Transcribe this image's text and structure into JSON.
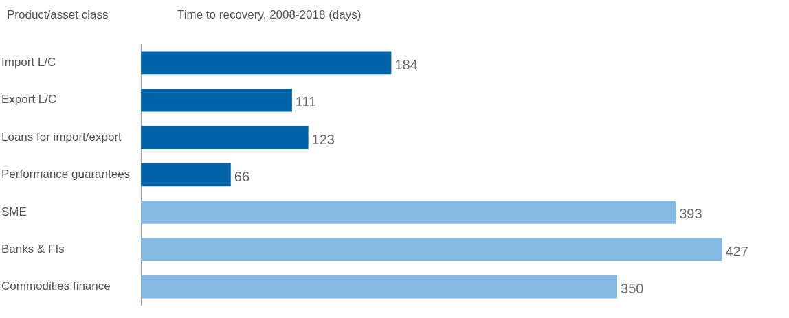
{
  "chart_data": {
    "type": "bar",
    "orientation": "horizontal",
    "ylabel": "Product/asset class",
    "xlabel": "Time to recovery, 2008-2018 (days)",
    "categories": [
      "Import L/C",
      "Export L/C",
      "Loans for import/export",
      "Performance guarantees",
      "SME",
      "Banks & FIs",
      "Commodities finance"
    ],
    "values": [
      184,
      111,
      123,
      66,
      393,
      427,
      350
    ],
    "colors": [
      "#0064a8",
      "#0064a8",
      "#0064a8",
      "#0064a8",
      "#85b9e3",
      "#85b9e3",
      "#85b9e3"
    ],
    "data_labels": true
  }
}
